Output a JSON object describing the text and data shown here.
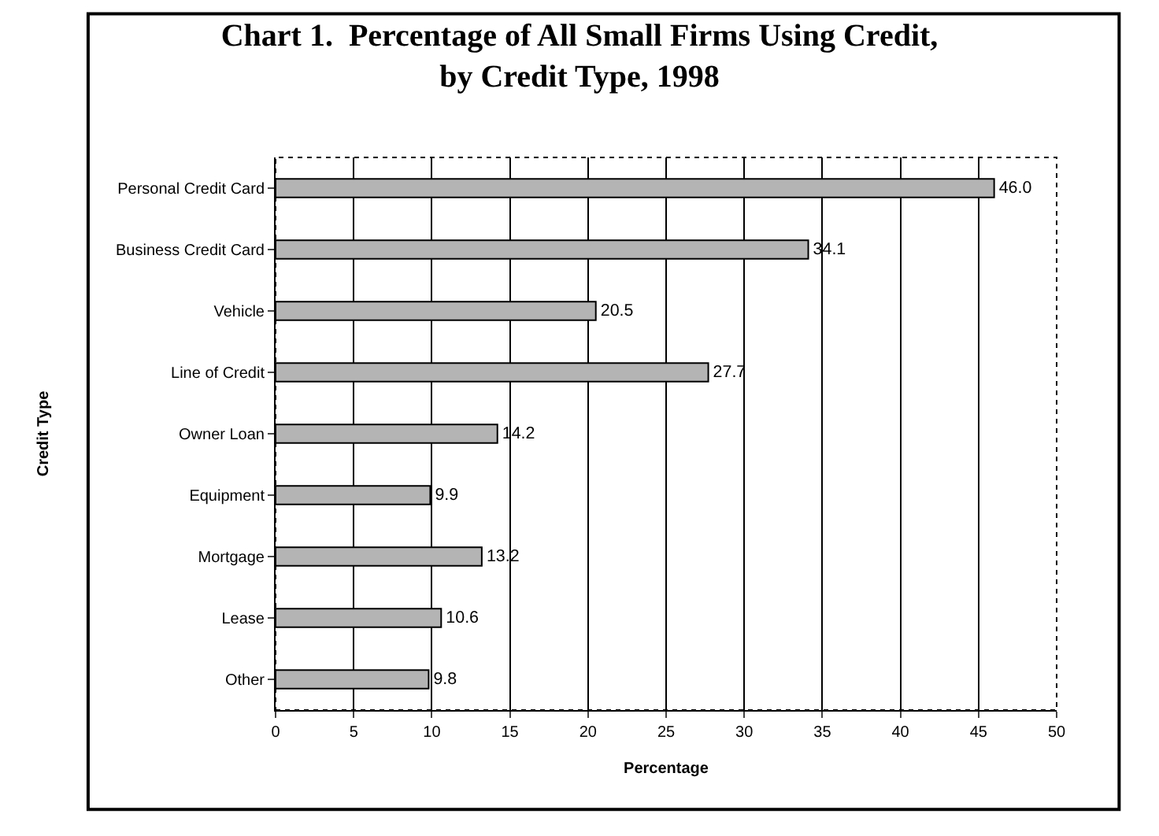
{
  "chart_data": {
    "type": "bar",
    "orientation": "horizontal",
    "title": "Chart 1.  Percentage of All Small Firms Using Credit,\nby Credit Type, 1998",
    "xlabel": "Percentage",
    "ylabel": "Credit Type",
    "categories": [
      "Personal Credit Card",
      "Business Credit Card",
      "Vehicle",
      "Line of Credit",
      "Owner Loan",
      "Equipment",
      "Mortgage",
      "Lease",
      "Other"
    ],
    "values": [
      46.0,
      34.1,
      20.5,
      27.7,
      14.2,
      9.9,
      13.2,
      10.6,
      9.8
    ],
    "value_labels": [
      "46.0",
      "34.1",
      "20.5",
      "27.7",
      "14.2",
      "9.9",
      "13.2",
      "10.6",
      "9.8"
    ],
    "color": "#b4b4b4",
    "xlim": [
      0,
      50
    ],
    "xticks": [
      0,
      5,
      10,
      15,
      20,
      25,
      30,
      35,
      40,
      45,
      50
    ],
    "grid": "x"
  }
}
